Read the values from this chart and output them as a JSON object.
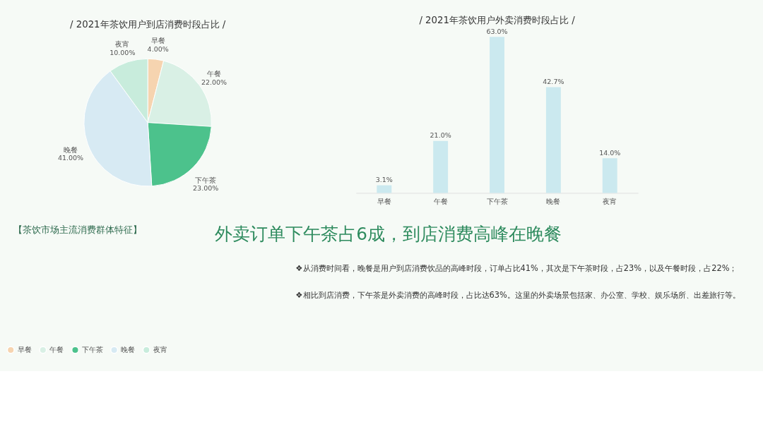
{
  "chart_data": [
    {
      "type": "pie",
      "title": "/ 2021年茶饮用户到店消费时段占比 /",
      "categories": [
        "早餐",
        "午餐",
        "下午茶",
        "晚餐",
        "夜宵"
      ],
      "values": [
        4,
        22,
        23,
        41,
        10
      ],
      "value_labels": [
        "4.00%",
        "22.00%",
        "23.00%",
        "41.00%",
        "10.00%"
      ],
      "colors": [
        "#f6d4b0",
        "#d9f0e5",
        "#4cc28c",
        "#d7eaf3",
        "#c8ecdc"
      ],
      "legend": "bottom"
    },
    {
      "type": "bar",
      "title": "/ 2021年茶饮用户外卖消费时段占比 /",
      "categories": [
        "早餐",
        "午餐",
        "下午茶",
        "晚餐",
        "夜宵"
      ],
      "values": [
        3.1,
        21.0,
        63.0,
        42.7,
        14.0
      ],
      "value_labels": [
        "3.1%",
        "21.0%",
        "63.0%",
        "42.7%",
        "14.0%"
      ],
      "color": "#cbe9ef",
      "annotations": [
        "【茶饮市场主流消费群体特征】",
        "外卖订单下午茶占6成，到店消费高峰在晚餐",
        "❖从消费时间看，晚餐是用户到店消费饮品的高峰时段，订单占比41%，其次是下午茶时段，占23%，以及午餐时段，占22%；",
        "❖相比到店消费，下午茶是外卖消费的高峰时段，占比达63%。这里的外卖场景包括家、办公室、学校、娱乐场所、出差旅行等。"
      ]
    }
  ]
}
